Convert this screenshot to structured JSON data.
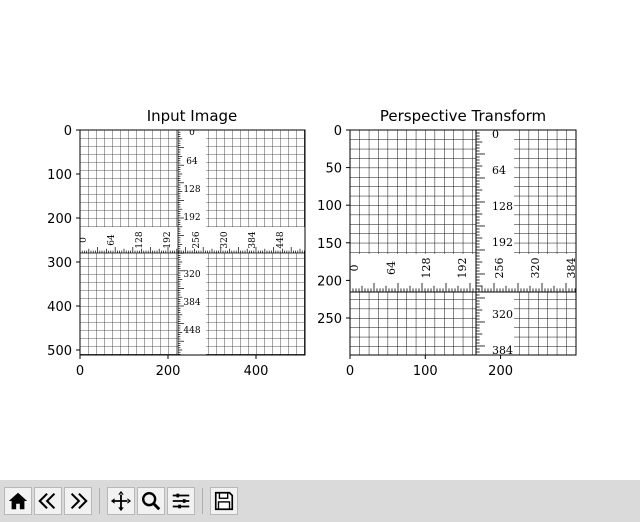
{
  "figure": {
    "left": {
      "title": "Input Image",
      "xticks": [
        "0",
        "200",
        "400"
      ],
      "yticks": [
        "0",
        "100",
        "200",
        "300",
        "400",
        "500"
      ],
      "ruler_labels": [
        "0",
        "64",
        "128",
        "192",
        "256",
        "320",
        "384",
        "448"
      ]
    },
    "right": {
      "title": "Perspective Transform",
      "xticks": [
        "0",
        "100",
        "200"
      ],
      "yticks": [
        "0",
        "50",
        "100",
        "150",
        "200",
        "250"
      ],
      "ruler_v_labels": [
        "0",
        "64",
        "128",
        "192",
        "320",
        "384"
      ],
      "ruler_h_labels": [
        "0",
        "64",
        "128",
        "192",
        "256",
        "320",
        "384"
      ]
    }
  },
  "toolbar": {
    "buttons": [
      "home-icon",
      "back-icon",
      "forward-icon",
      "pan-icon",
      "zoom-icon",
      "configure-subplots-icon",
      "save-icon"
    ]
  }
}
